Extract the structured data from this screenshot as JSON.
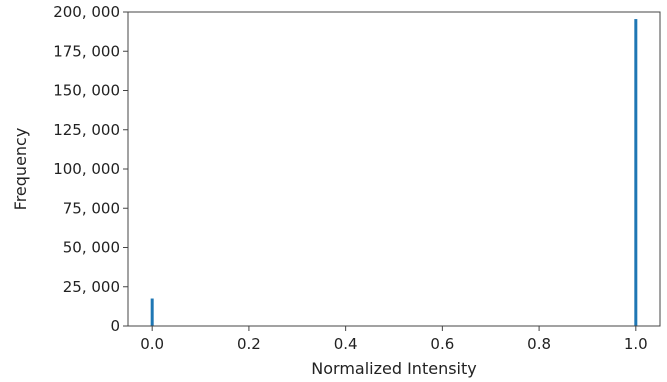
{
  "chart_data": {
    "type": "bar",
    "title": "",
    "xlabel": "Normalized Intensity",
    "ylabel": "Frequency",
    "xlim": [
      -0.05,
      1.05
    ],
    "ylim": [
      0,
      200000
    ],
    "xticks": [
      0.0,
      0.2,
      0.4,
      0.6,
      0.8,
      1.0
    ],
    "xtick_labels": [
      "0.0",
      "0.2",
      "0.4",
      "0.6",
      "0.8",
      "1.0"
    ],
    "yticks": [
      0,
      25000,
      50000,
      75000,
      100000,
      125000,
      150000,
      175000,
      200000
    ],
    "ytick_labels": [
      "0",
      "25, 000",
      "50, 000",
      "75, 000",
      "100, 000",
      "125, 000",
      "150, 000",
      "175, 000",
      "200, 000"
    ],
    "x": [
      0.0,
      1.0
    ],
    "values": [
      17500,
      195500
    ],
    "grid": false,
    "colors": {
      "bar": "#1f77b4",
      "axes": "#444444",
      "text": "#222222"
    }
  }
}
